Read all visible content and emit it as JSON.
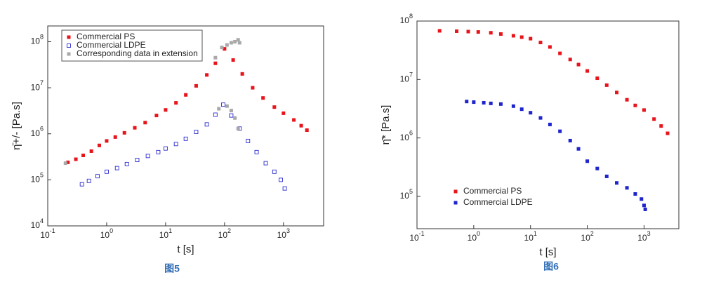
{
  "chart_data": [
    {
      "type": "scatter",
      "caption": "图5",
      "x_label": "t [s]",
      "y_label": "η̄+/- [Pa.s]",
      "xscale": "log",
      "yscale": "log",
      "legend": "upper left",
      "legend_box": true,
      "xlim": [
        0.1,
        4800
      ],
      "ylim": [
        10000,
        220000000
      ],
      "xticks": [
        {
          "value": 0.1,
          "label": "10^-1"
        },
        {
          "value": 1,
          "label": "10^0"
        },
        {
          "value": 10,
          "label": "10^1"
        },
        {
          "value": 100,
          "label": "10^2"
        },
        {
          "value": 1000,
          "label": "10^3"
        }
      ],
      "yticks": [
        {
          "value": 10000,
          "label": "10^4"
        },
        {
          "value": 100000,
          "label": "10^5"
        },
        {
          "value": 1000000,
          "label": "10^6"
        },
        {
          "value": 10000000,
          "label": "10^7"
        },
        {
          "value": 100000000,
          "label": "10^8"
        }
      ],
      "series": [
        {
          "name": "Commercial PS",
          "color": "#e8141b",
          "filled": true,
          "x": [
            0.22,
            0.3,
            0.4,
            0.55,
            0.75,
            1,
            1.4,
            2,
            3,
            4.5,
            7,
            10,
            15,
            22,
            33,
            50,
            70,
            100,
            140,
            200,
            300,
            450,
            700,
            1000,
            1500,
            2000,
            2500
          ],
          "values": [
            240000,
            280000,
            340000,
            420000,
            560000,
            700000,
            850000,
            1050000,
            1350000,
            1750000,
            2500000,
            3300000,
            4700000,
            7000000,
            11000000,
            19000000,
            34000000,
            70000000,
            40000000,
            20000000,
            10000000,
            6000000,
            3800000,
            2800000,
            2000000,
            1500000,
            1200000
          ]
        },
        {
          "name": "Commercial LDPE",
          "color": "#2b2bd1",
          "filled": false,
          "x": [
            0.38,
            0.5,
            0.7,
            1,
            1.5,
            2.2,
            3.3,
            5,
            7.5,
            10,
            15,
            22,
            33,
            50,
            70,
            95,
            130,
            180,
            250,
            350,
            500,
            700,
            900,
            1050
          ],
          "values": [
            80000,
            95000,
            120000,
            150000,
            180000,
            220000,
            270000,
            330000,
            400000,
            480000,
            600000,
            780000,
            1100000,
            1600000,
            2600000,
            4300000,
            2500000,
            1300000,
            700000,
            400000,
            230000,
            150000,
            100000,
            65000
          ]
        },
        {
          "name": "Corresponding data in extension",
          "color": "#a9a9a9",
          "filled": true,
          "x": [
            0.2,
            70,
            90,
            110,
            130,
            150,
            170,
            180,
            80,
            110,
            130,
            150,
            170
          ],
          "values": [
            230000,
            45000000,
            75000000,
            85000000,
            95000000,
            100000000,
            110000000,
            95000000,
            3500000,
            4000000,
            3200000,
            2200000,
            1300000
          ]
        }
      ]
    },
    {
      "type": "scatter",
      "caption": "图6",
      "x_label": "t [s]",
      "y_label": "η̄* [Pa.s]",
      "xscale": "log",
      "yscale": "log",
      "legend": "lower left",
      "legend_box": false,
      "xlim": [
        0.1,
        4100
      ],
      "ylim": [
        28000,
        100000000
      ],
      "xticks": [
        {
          "value": 0.1,
          "label": "10^-1"
        },
        {
          "value": 1,
          "label": "10^0"
        },
        {
          "value": 10,
          "label": "10^1"
        },
        {
          "value": 100,
          "label": "10^2"
        },
        {
          "value": 1000,
          "label": "10^3"
        }
      ],
      "yticks": [
        {
          "value": 100000,
          "label": "10^5"
        },
        {
          "value": 1000000,
          "label": "10^6"
        },
        {
          "value": 10000000,
          "label": "10^7"
        },
        {
          "value": 100000000,
          "label": "10^8"
        }
      ],
      "series": [
        {
          "name": "Commercial PS",
          "color": "#e8141b",
          "filled": true,
          "x": [
            0.25,
            0.5,
            0.8,
            1.2,
            2,
            3,
            5,
            7,
            10,
            15,
            22,
            33,
            50,
            70,
            100,
            150,
            220,
            330,
            500,
            700,
            1000,
            1500,
            2000,
            2600
          ],
          "values": [
            68000000,
            67000000,
            66000000,
            65000000,
            63000000,
            60000000,
            56000000,
            53000000,
            50000000,
            43000000,
            36000000,
            28000000,
            22000000,
            18000000,
            14000000,
            10500000,
            8000000,
            6000000,
            4500000,
            3600000,
            3000000,
            2100000,
            1600000,
            1200000
          ]
        },
        {
          "name": "Commercial LDPE",
          "color": "#1f24cc",
          "filled": true,
          "x": [
            0.75,
            1,
            1.5,
            2,
            3,
            5,
            7,
            10,
            15,
            22,
            33,
            50,
            70,
            100,
            150,
            220,
            330,
            500,
            700,
            900,
            1000,
            1050
          ],
          "values": [
            4200000,
            4100000,
            4000000,
            3900000,
            3800000,
            3500000,
            3100000,
            2700000,
            2200000,
            1700000,
            1300000,
            900000,
            650000,
            400000,
            300000,
            220000,
            170000,
            140000,
            110000,
            90000,
            70000,
            60000
          ]
        }
      ]
    }
  ]
}
